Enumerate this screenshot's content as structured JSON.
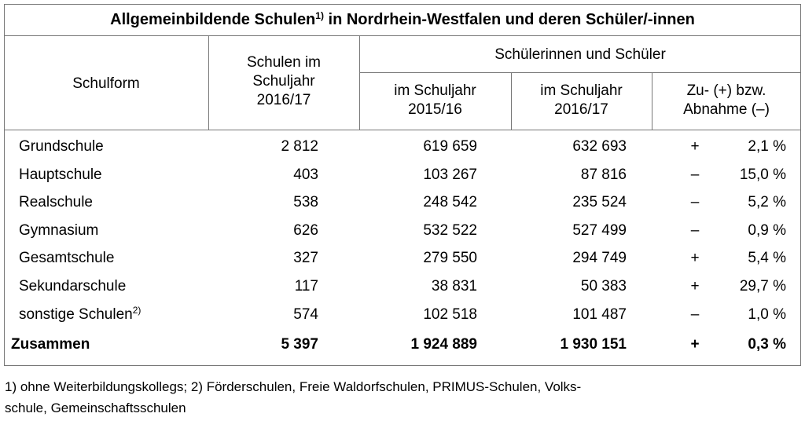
{
  "title": {
    "main": "Allgemeinbildende Schulen",
    "note": "1)",
    "rest": " in Nordrhein-Westfalen und deren Schüler/-innen"
  },
  "header": {
    "schulform": "Schulform",
    "schulen": [
      "Schulen im",
      "Schuljahr",
      "2016/17"
    ],
    "group": "Schülerinnen und Schüler",
    "sub": [
      [
        "im Schuljahr",
        "2015/16"
      ],
      [
        "im Schuljahr",
        "2016/17"
      ],
      [
        "Zu- (+) bzw.",
        "Abnahme (–)"
      ]
    ]
  },
  "rows": [
    {
      "label": "Grundschule",
      "values": [
        "2 812",
        "619 659",
        "632 693",
        "+",
        "2,1 %"
      ]
    },
    {
      "label": "Hauptschule",
      "values": [
        "403",
        "103 267",
        "87 816",
        "–",
        "15,0 %"
      ]
    },
    {
      "label": "Realschule",
      "values": [
        "538",
        "248 542",
        "235 524",
        "–",
        "5,2 %"
      ]
    },
    {
      "label": "Gymnasium",
      "values": [
        "626",
        "532 522",
        "527 499",
        "–",
        "0,9 %"
      ]
    },
    {
      "label": "Gesamtschule",
      "values": [
        "327",
        "279 550",
        "294 749",
        "+",
        "5,4 %"
      ]
    },
    {
      "label": "Sekundarschule",
      "values": [
        "117",
        "38 831",
        "50 383",
        "+",
        "29,7 %"
      ]
    },
    {
      "label": "sonstige Schulen",
      "note": "2)",
      "values": [
        "574",
        "102 518",
        "101 487",
        "–",
        "1,0 %"
      ]
    }
  ],
  "total": {
    "label": "Zusammen",
    "values": [
      "5 397",
      "1 924 889",
      "1 930 151",
      "+",
      "0,3 %"
    ]
  },
  "footnotes": [
    "1) ohne Weiterbildungskollegs; 2) Förderschulen, Freie Waldorfschulen, PRIMUS-Schulen, Volks-",
    "schule, Gemeinschaftsschulen"
  ]
}
